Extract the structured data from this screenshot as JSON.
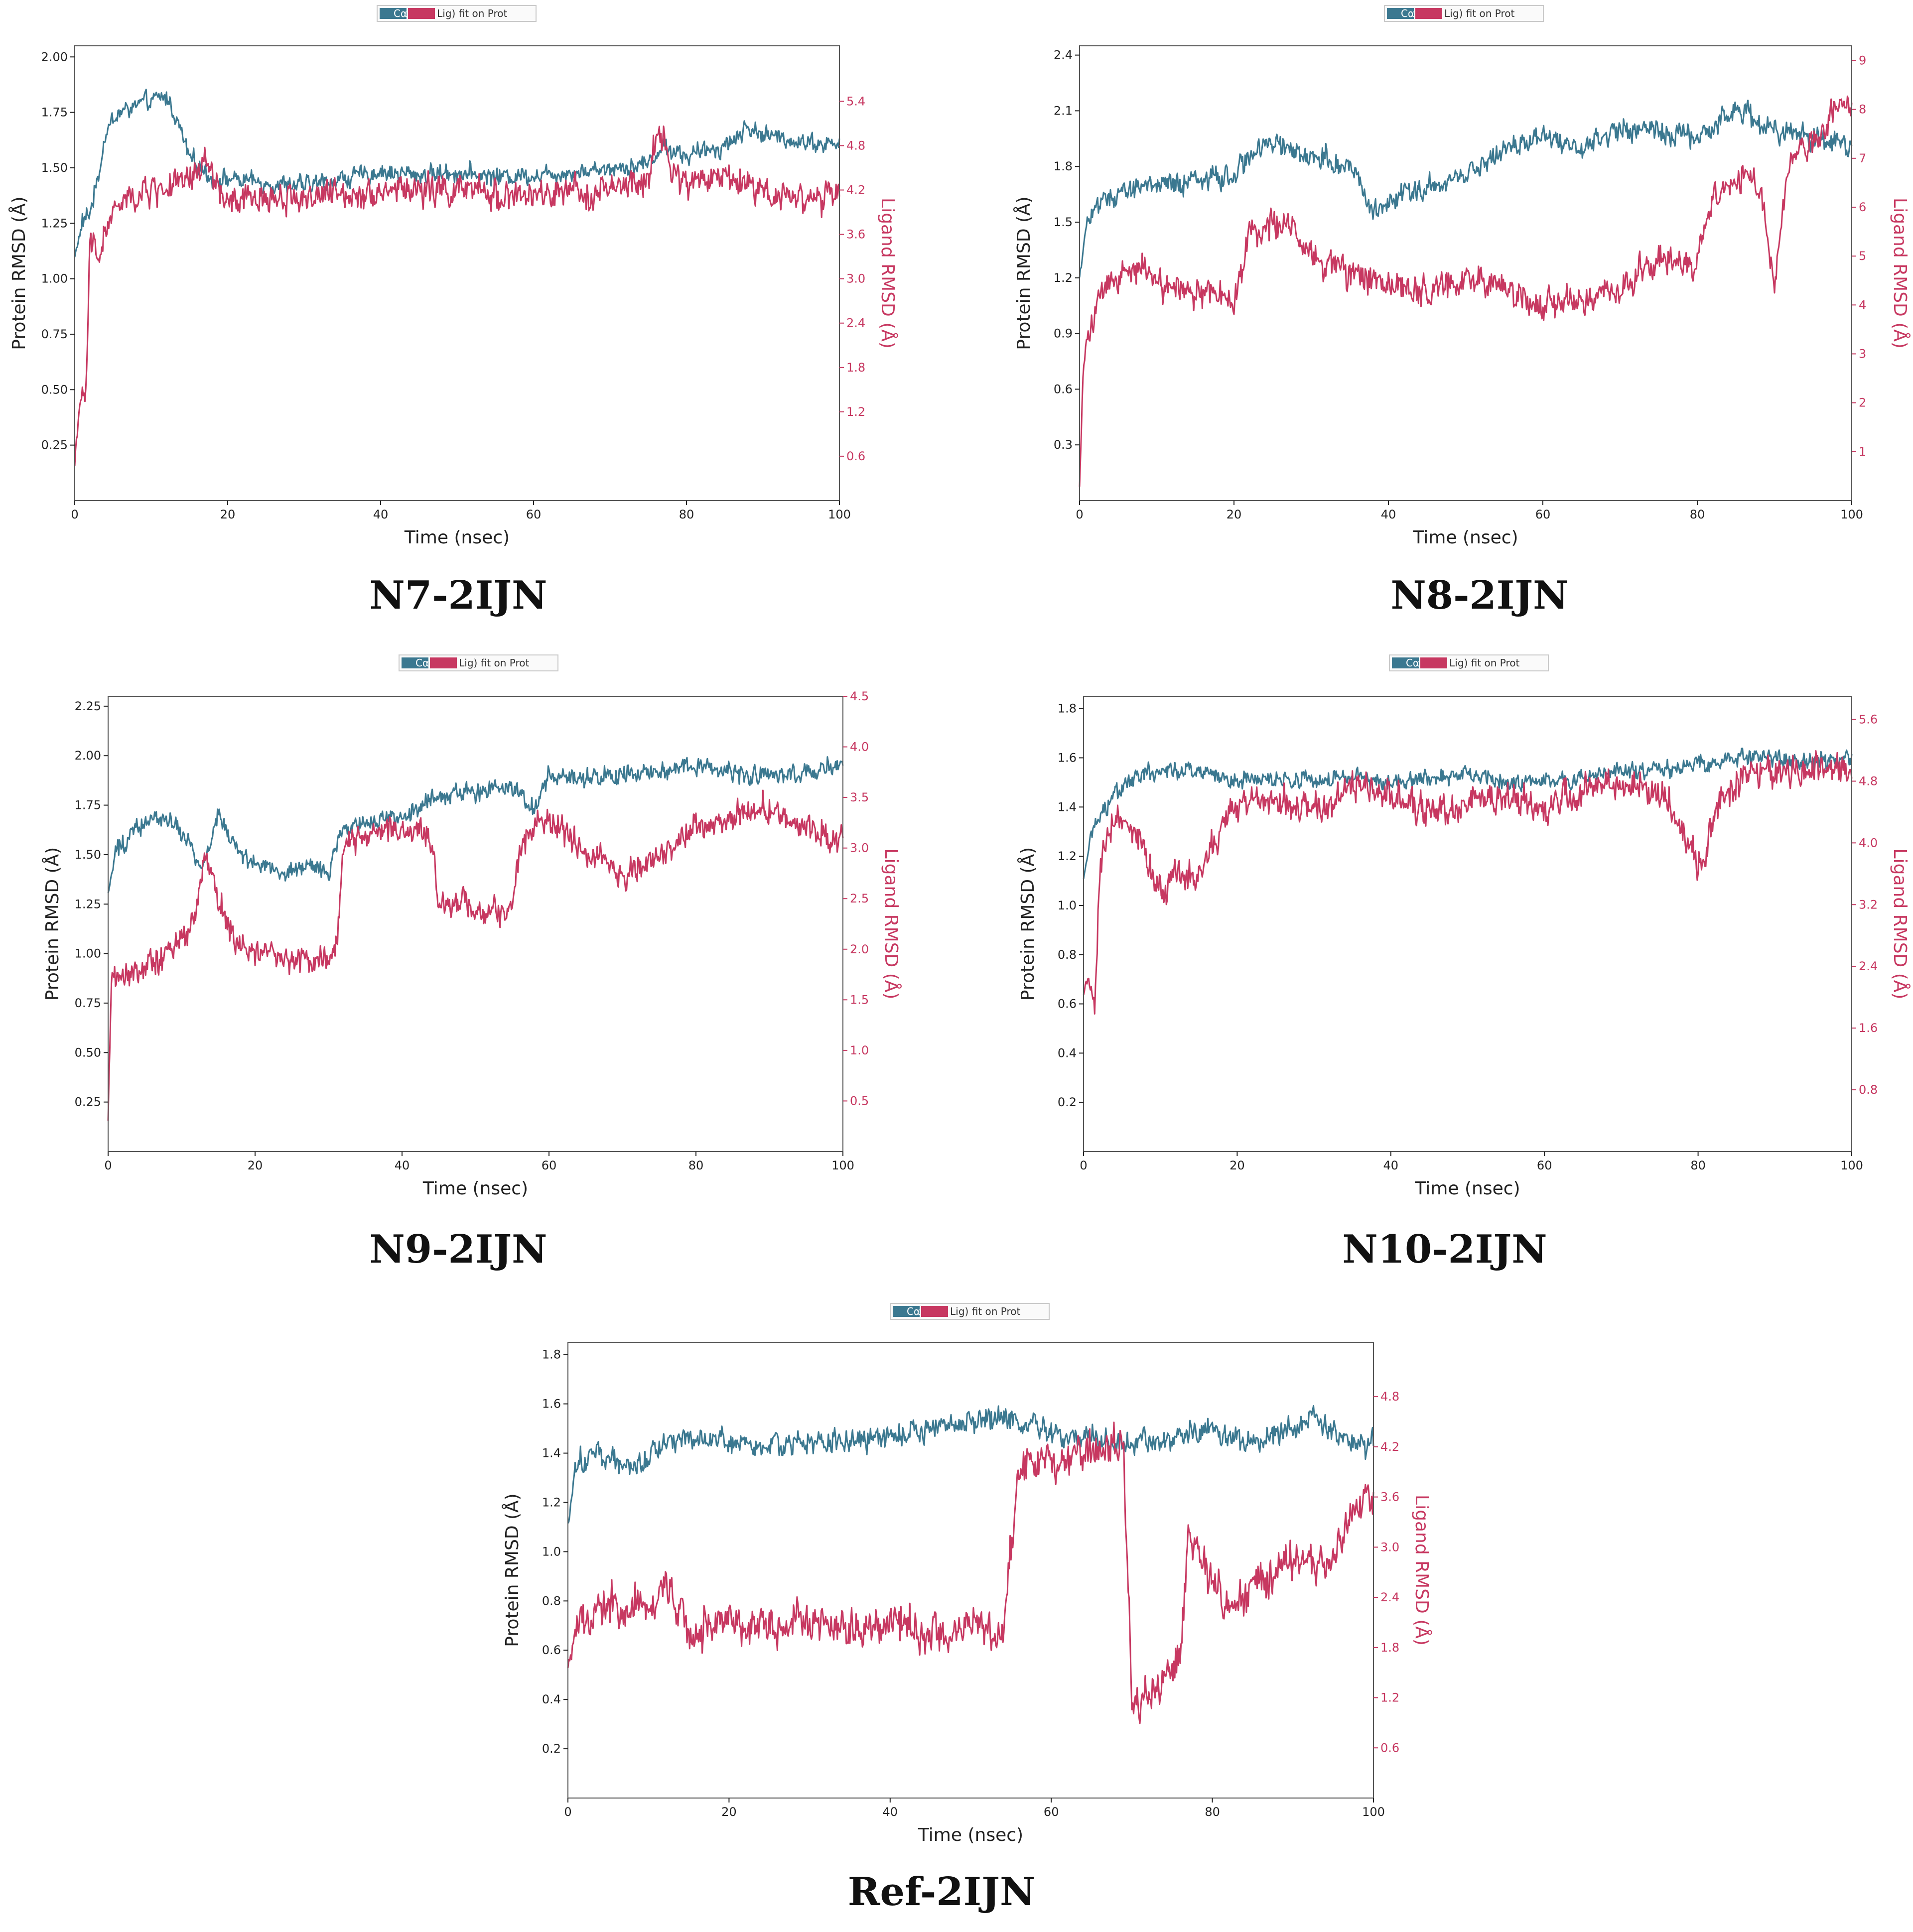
{
  "colors": {
    "protein": "#3b7890",
    "ligand": "#c73861",
    "axis": "#222222"
  },
  "legend": {
    "protein_label": "Cα",
    "ligand_label": "Lig) fit on Prot"
  },
  "chart_data": [
    {
      "type": "line",
      "caption": "N7-2IJN",
      "xlabel": "Time (nsec)",
      "ylabel_left": "Protein RMSD (Å)",
      "ylabel_right": "Ligand RMSD (Å)",
      "xlim": [
        0,
        100
      ],
      "xticks": [
        0,
        20,
        40,
        60,
        80,
        100
      ],
      "ylim_left": [
        0,
        2.05
      ],
      "yticks_left": [
        0.25,
        0.5,
        0.75,
        1.0,
        1.25,
        1.5,
        1.75,
        2.0
      ],
      "left_decimals": 2,
      "ylim_right": [
        0,
        6.15
      ],
      "yticks_right": [
        0.6,
        1.2,
        1.8,
        2.4,
        3.0,
        3.6,
        4.2,
        4.8,
        5.4
      ],
      "right_decimals": 1,
      "series": [
        {
          "name": "Protein RMSD",
          "axis": "left",
          "x": [
            0,
            1,
            2,
            3,
            4,
            5,
            6,
            8,
            10,
            12,
            13,
            15,
            18,
            20,
            25,
            30,
            35,
            40,
            45,
            50,
            55,
            60,
            65,
            70,
            75,
            77,
            80,
            85,
            88,
            90,
            95,
            100
          ],
          "y": [
            1.1,
            1.25,
            1.3,
            1.45,
            1.65,
            1.72,
            1.75,
            1.78,
            1.8,
            1.82,
            1.75,
            1.55,
            1.45,
            1.45,
            1.43,
            1.42,
            1.45,
            1.48,
            1.47,
            1.48,
            1.46,
            1.47,
            1.48,
            1.5,
            1.52,
            1.6,
            1.55,
            1.6,
            1.68,
            1.65,
            1.62,
            1.6
          ],
          "noise": 0.06
        },
        {
          "name": "Ligand RMSD",
          "axis": "right",
          "x": [
            0,
            0.5,
            1,
            1.5,
            2,
            3,
            4,
            5,
            6,
            8,
            10,
            15,
            17,
            20,
            25,
            30,
            40,
            50,
            60,
            70,
            75,
            76,
            77,
            78,
            80,
            85,
            90,
            95,
            100
          ],
          "y": [
            0.5,
            1.2,
            1.3,
            1.5,
            3.5,
            3.3,
            3.6,
            3.9,
            4.0,
            4.1,
            4.2,
            4.3,
            4.6,
            4.0,
            4.1,
            4.1,
            4.2,
            4.2,
            4.1,
            4.2,
            4.3,
            4.9,
            5.0,
            4.4,
            4.3,
            4.4,
            4.2,
            4.1,
            4.1
          ],
          "noise": 0.3
        }
      ]
    },
    {
      "type": "line",
      "caption": "N8-2IJN",
      "xlabel": "Time (nsec)",
      "ylabel_left": "Protein RMSD (Å)",
      "ylabel_right": "Ligand RMSD (Å)",
      "xlim": [
        0,
        100
      ],
      "xticks": [
        0,
        20,
        40,
        60,
        80,
        100
      ],
      "ylim_left": [
        0,
        2.45
      ],
      "yticks_left": [
        0.3,
        0.6,
        0.9,
        1.2,
        1.5,
        1.8,
        2.1,
        2.4
      ],
      "left_decimals": 1,
      "ylim_right": [
        0,
        9.3
      ],
      "yticks_right": [
        1,
        2,
        3,
        4,
        5,
        6,
        7,
        8,
        9
      ],
      "right_decimals": 0,
      "series": [
        {
          "name": "Protein RMSD",
          "axis": "left",
          "x": [
            0,
            1,
            2,
            5,
            10,
            15,
            20,
            22,
            25,
            30,
            35,
            38,
            40,
            45,
            50,
            55,
            60,
            65,
            70,
            75,
            80,
            85,
            90,
            95,
            100
          ],
          "y": [
            1.2,
            1.5,
            1.6,
            1.65,
            1.7,
            1.72,
            1.75,
            1.85,
            1.95,
            1.85,
            1.8,
            1.55,
            1.6,
            1.7,
            1.75,
            1.9,
            1.95,
            1.9,
            2.0,
            2.0,
            1.95,
            2.1,
            2.0,
            1.95,
            1.9
          ],
          "noise": 0.09
        },
        {
          "name": "Ligand RMSD",
          "axis": "right",
          "x": [
            0,
            0.5,
            1,
            2,
            3,
            5,
            8,
            10,
            15,
            20,
            22,
            25,
            28,
            30,
            35,
            40,
            45,
            50,
            55,
            60,
            65,
            70,
            75,
            80,
            82,
            85,
            88,
            90,
            92,
            94,
            96,
            98,
            100
          ],
          "y": [
            0.3,
            2.8,
            3.2,
            3.8,
            4.2,
            4.5,
            4.7,
            4.4,
            4.2,
            4.1,
            5.5,
            5.7,
            5.5,
            5.0,
            4.6,
            4.4,
            4.3,
            4.5,
            4.3,
            4.0,
            4.1,
            4.3,
            5.0,
            4.8,
            6.2,
            6.5,
            6.6,
            4.5,
            7.0,
            7.2,
            7.5,
            8.2,
            8.0
          ],
          "noise": 0.45
        }
      ]
    },
    {
      "type": "line",
      "caption": "N9-2IJN",
      "xlabel": "Time (nsec)",
      "ylabel_left": "Protein RMSD (Å)",
      "ylabel_right": "Ligand RMSD (Å)",
      "xlim": [
        0,
        100
      ],
      "xticks": [
        0,
        20,
        40,
        60,
        80,
        100
      ],
      "ylim_left": [
        0,
        2.3
      ],
      "yticks_left": [
        0.25,
        0.5,
        0.75,
        1.0,
        1.25,
        1.5,
        1.75,
        2.0,
        2.25
      ],
      "left_decimals": 2,
      "ylim_right": [
        0,
        4.5
      ],
      "yticks_right": [
        0.5,
        1.0,
        1.5,
        2.0,
        2.5,
        3.0,
        3.5,
        4.0,
        4.5
      ],
      "right_decimals": 1,
      "series": [
        {
          "name": "Protein RMSD",
          "axis": "left",
          "x": [
            0,
            1,
            3,
            5,
            8,
            10,
            13,
            15,
            18,
            20,
            25,
            28,
            30,
            32,
            35,
            40,
            45,
            50,
            55,
            58,
            60,
            65,
            70,
            75,
            80,
            85,
            90,
            95,
            100
          ],
          "y": [
            1.3,
            1.5,
            1.6,
            1.65,
            1.7,
            1.6,
            1.45,
            1.7,
            1.5,
            1.45,
            1.4,
            1.45,
            1.4,
            1.65,
            1.65,
            1.7,
            1.8,
            1.82,
            1.85,
            1.75,
            1.9,
            1.88,
            1.9,
            1.92,
            1.95,
            1.9,
            1.9,
            1.92,
            1.95
          ],
          "noise": 0.07
        },
        {
          "name": "Ligand RMSD",
          "axis": "right",
          "x": [
            0,
            0.5,
            1,
            3,
            5,
            8,
            10,
            12,
            13,
            14,
            15,
            17,
            20,
            25,
            30,
            31,
            32,
            35,
            40,
            44,
            45,
            50,
            55,
            56,
            58,
            60,
            65,
            70,
            75,
            80,
            85,
            90,
            95,
            100
          ],
          "y": [
            0.3,
            1.8,
            1.7,
            1.75,
            1.8,
            2.0,
            2.1,
            2.4,
            2.9,
            2.8,
            2.5,
            2.1,
            2.0,
            1.9,
            1.9,
            2.0,
            3.0,
            3.1,
            3.2,
            3.1,
            2.5,
            2.4,
            2.4,
            3.0,
            3.2,
            3.3,
            3.0,
            2.7,
            2.9,
            3.2,
            3.3,
            3.4,
            3.2,
            3.1
          ],
          "noise": 0.2
        }
      ]
    },
    {
      "type": "line",
      "caption": "N10-2IJN",
      "xlabel": "Time (nsec)",
      "ylabel_left": "Protein RMSD (Å)",
      "ylabel_right": "Ligand RMSD (Å)",
      "xlim": [
        0,
        100
      ],
      "xticks": [
        0,
        20,
        40,
        60,
        80,
        100
      ],
      "ylim_left": [
        0,
        1.85
      ],
      "yticks_left": [
        0.2,
        0.4,
        0.6,
        0.8,
        1.0,
        1.2,
        1.4,
        1.6,
        1.8
      ],
      "left_decimals": 1,
      "ylim_right": [
        0,
        5.9
      ],
      "yticks_right": [
        0.8,
        1.6,
        2.4,
        3.2,
        4.0,
        4.8,
        5.6
      ],
      "right_decimals": 1,
      "series": [
        {
          "name": "Protein RMSD",
          "axis": "left",
          "x": [
            0,
            1,
            2,
            4,
            6,
            10,
            15,
            20,
            25,
            30,
            35,
            40,
            45,
            50,
            55,
            60,
            65,
            70,
            75,
            80,
            85,
            90,
            95,
            100
          ],
          "y": [
            1.1,
            1.3,
            1.35,
            1.45,
            1.5,
            1.55,
            1.55,
            1.5,
            1.52,
            1.5,
            1.52,
            1.5,
            1.52,
            1.53,
            1.5,
            1.5,
            1.52,
            1.55,
            1.55,
            1.58,
            1.6,
            1.6,
            1.58,
            1.6
          ],
          "noise": 0.05
        },
        {
          "name": "Ligand RMSD",
          "axis": "right",
          "x": [
            0,
            0.5,
            1,
            1.5,
            2,
            3,
            5,
            8,
            10,
            12,
            15,
            18,
            20,
            25,
            30,
            35,
            40,
            45,
            50,
            55,
            60,
            65,
            70,
            75,
            78,
            80,
            83,
            85,
            90,
            95,
            100
          ],
          "y": [
            2.0,
            2.2,
            2.1,
            1.8,
            3.5,
            4.1,
            4.4,
            3.8,
            3.4,
            3.6,
            3.5,
            4.2,
            4.5,
            4.6,
            4.4,
            4.7,
            4.6,
            4.4,
            4.5,
            4.6,
            4.4,
            4.7,
            4.8,
            4.7,
            4.2,
            3.7,
            4.6,
            4.8,
            4.9,
            5.0,
            4.9
          ],
          "noise": 0.3
        }
      ]
    },
    {
      "type": "line",
      "caption": "Ref-2IJN",
      "xlabel": "Time (nsec)",
      "ylabel_left": "Protein RMSD (Å)",
      "ylabel_right": "Ligand RMSD (Å)",
      "xlim": [
        0,
        100
      ],
      "xticks": [
        0,
        20,
        40,
        60,
        80,
        100
      ],
      "ylim_left": [
        0,
        1.85
      ],
      "yticks_left": [
        0.2,
        0.4,
        0.6,
        0.8,
        1.0,
        1.2,
        1.4,
        1.6,
        1.8
      ],
      "left_decimals": 1,
      "ylim_right": [
        0,
        5.45
      ],
      "yticks_right": [
        0.6,
        1.2,
        1.8,
        2.4,
        3.0,
        3.6,
        4.2,
        4.8
      ],
      "right_decimals": 1,
      "series": [
        {
          "name": "Protein RMSD",
          "axis": "left",
          "x": [
            0,
            1,
            3,
            5,
            8,
            10,
            15,
            20,
            25,
            30,
            35,
            40,
            45,
            50,
            55,
            60,
            65,
            70,
            75,
            80,
            85,
            90,
            92,
            95,
            98,
            100
          ],
          "y": [
            1.1,
            1.35,
            1.4,
            1.38,
            1.35,
            1.4,
            1.45,
            1.45,
            1.42,
            1.45,
            1.45,
            1.48,
            1.5,
            1.52,
            1.55,
            1.48,
            1.45,
            1.45,
            1.45,
            1.5,
            1.45,
            1.5,
            1.55,
            1.48,
            1.42,
            1.45
          ],
          "noise": 0.07
        },
        {
          "name": "Ligand RMSD",
          "axis": "right",
          "x": [
            0,
            1,
            5,
            10,
            12,
            15,
            20,
            25,
            30,
            35,
            40,
            45,
            50,
            54,
            56,
            57,
            60,
            63,
            65,
            68,
            69,
            70,
            71,
            73,
            75,
            76,
            77,
            80,
            82,
            85,
            90,
            95,
            98,
            100
          ],
          "y": [
            1.5,
            2.1,
            2.3,
            2.3,
            2.5,
            2.0,
            2.1,
            2.0,
            2.1,
            2.0,
            2.2,
            2.0,
            2.1,
            2.0,
            3.8,
            4.1,
            4.0,
            4.1,
            4.2,
            4.3,
            4.1,
            1.1,
            1.1,
            1.3,
            1.5,
            1.7,
            3.1,
            2.7,
            2.3,
            2.5,
            2.8,
            2.9,
            3.4,
            3.6
          ],
          "noise": 0.35
        }
      ]
    }
  ]
}
